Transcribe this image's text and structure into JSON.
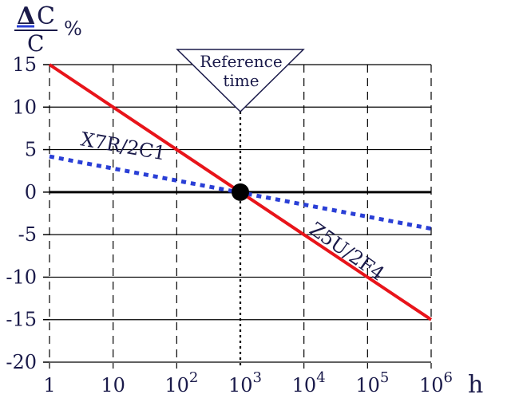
{
  "chart_data": {
    "type": "line",
    "xscale": "log",
    "xlim": [
      1,
      1000000
    ],
    "ylim": [
      -20,
      15
    ],
    "x_ticks": [
      1,
      10,
      100,
      1000,
      10000,
      100000,
      1000000
    ],
    "x_tick_labels": [
      {
        "base": "1",
        "exp": ""
      },
      {
        "base": "10",
        "exp": ""
      },
      {
        "base": "10",
        "exp": "2"
      },
      {
        "base": "10",
        "exp": "3"
      },
      {
        "base": "10",
        "exp": "4"
      },
      {
        "base": "10",
        "exp": "5"
      },
      {
        "base": "10",
        "exp": "6"
      }
    ],
    "y_ticks": [
      15,
      10,
      5,
      0,
      -5,
      -10,
      -15,
      -20
    ],
    "y_tick_labels": [
      "15",
      "10",
      "5",
      "0",
      "-5",
      "-10",
      "-15",
      "-20"
    ],
    "x_unit": "h",
    "y_unit": {
      "delta": "Δ",
      "numerator": "C",
      "denominator": "C",
      "percent": "%"
    },
    "grid": true,
    "reference": {
      "x": 1000,
      "line1": "Reference",
      "line2": "time"
    },
    "series": [
      {
        "name": "X7R/2C1",
        "color": "#2a3fd6",
        "style": "dotted",
        "x": [
          1,
          1000000
        ],
        "y": [
          4.2,
          -4.3
        ]
      },
      {
        "name": "Z5U/2F4",
        "color": "#e8141a",
        "style": "solid",
        "x": [
          1,
          1000000
        ],
        "y": [
          15,
          -15
        ]
      }
    ],
    "marker_point": {
      "x": 1000,
      "y": 0
    }
  }
}
